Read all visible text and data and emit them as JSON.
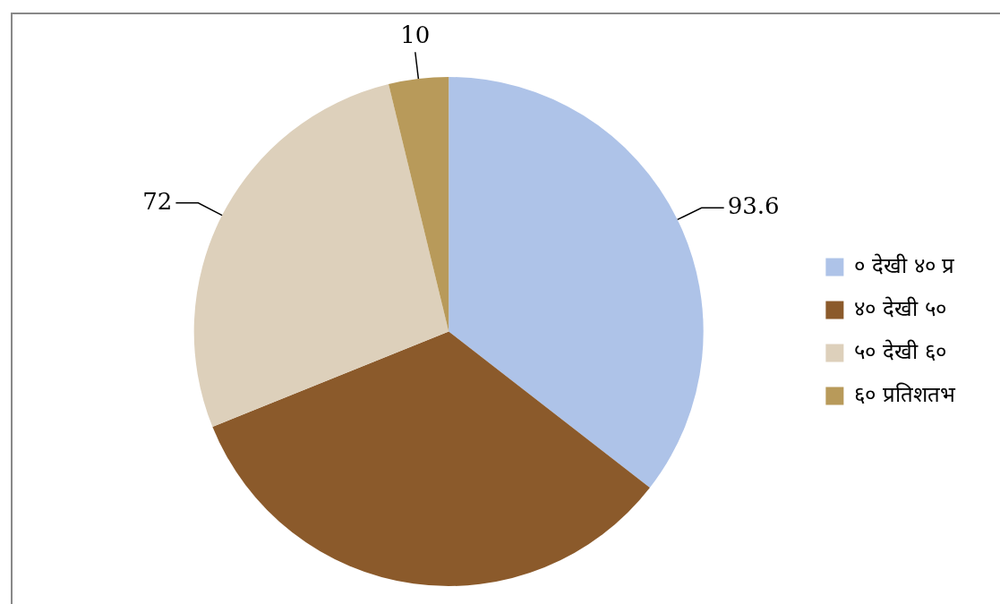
{
  "chart_data": {
    "type": "pie",
    "categories": [
      "० देखी ४० प्र",
      "४० देखी ५०",
      "५० देखी ६०",
      "६० प्रतिशतभ"
    ],
    "values": [
      93.6,
      88,
      72,
      10
    ],
    "value_labels": [
      "93.6",
      null,
      "72",
      "10"
    ],
    "colors": [
      "#aec3e8",
      "#8b5a2b",
      "#ddd0bb",
      "#b89a5a"
    ],
    "legend": "right"
  }
}
